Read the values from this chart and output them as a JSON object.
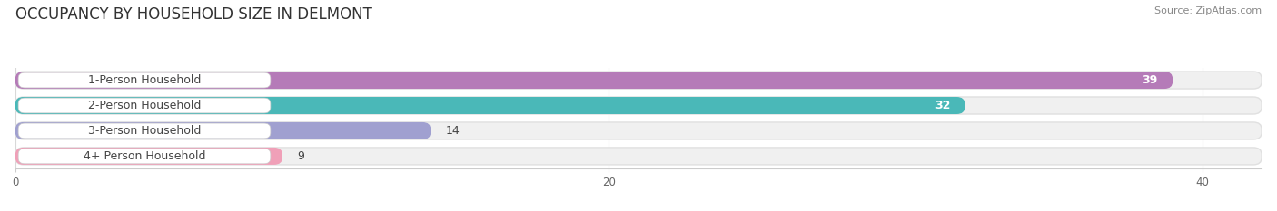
{
  "title": "OCCUPANCY BY HOUSEHOLD SIZE IN DELMONT",
  "source": "Source: ZipAtlas.com",
  "categories": [
    "1-Person Household",
    "2-Person Household",
    "3-Person Household",
    "4+ Person Household"
  ],
  "values": [
    39,
    32,
    14,
    9
  ],
  "bar_colors": [
    "#b57bb8",
    "#4ab8b8",
    "#a0a0d0",
    "#f0a0b8"
  ],
  "label_colors": [
    "white",
    "white",
    "black",
    "black"
  ],
  "xlim_max": 42,
  "xticks": [
    0,
    20,
    40
  ],
  "title_fontsize": 12,
  "source_fontsize": 8,
  "label_fontsize": 9,
  "value_fontsize": 9,
  "background_color": "#ffffff",
  "bar_bg_color": "#f0f0f0",
  "grid_color": "#d8d8d8",
  "axis_color": "#cccccc",
  "text_color": "#444444"
}
